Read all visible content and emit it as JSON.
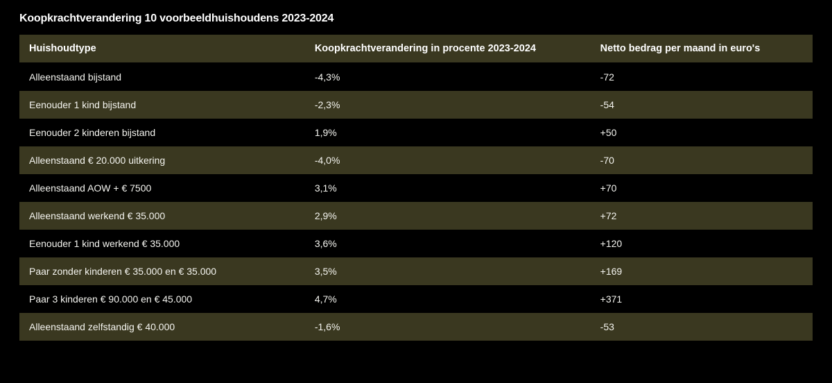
{
  "title": "Koopkrachtverandering 10 voorbeeldhuishoudens 2023-2024",
  "table": {
    "type": "table",
    "columns": [
      "Huishoudtype",
      "Koopkrachtverandering in procente 2023-2024",
      "Netto bedrag per maand in euro's"
    ],
    "rows": [
      [
        "Alleenstaand bijstand",
        "-4,3%",
        "-72"
      ],
      [
        "Eenouder 1 kind bijstand",
        "-2,3%",
        "-54"
      ],
      [
        "Eenouder 2 kinderen bijstand",
        "1,9%",
        "+50"
      ],
      [
        "Alleenstaand € 20.000 uitkering",
        "-4,0%",
        "-70"
      ],
      [
        "Alleenstaand AOW + € 7500",
        "3,1%",
        "+70"
      ],
      [
        "Alleenstaand werkend € 35.000",
        "2,9%",
        "+72"
      ],
      [
        "Eenouder 1 kind werkend € 35.000",
        "3,6%",
        "+120"
      ],
      [
        "Paar zonder kinderen € 35.000 en € 35.000",
        "3,5%",
        "+169"
      ],
      [
        "Paar 3 kinderen € 90.000 en € 45.000",
        "4,7%",
        "+371"
      ],
      [
        "Alleenstaand zelfstandig € 40.000",
        "-1,6%",
        "-53"
      ]
    ],
    "styling": {
      "header_bg": "#3a3820",
      "row_odd_bg": "#000000",
      "row_even_bg": "#3a3820",
      "text_color": "#ffffff",
      "body_text_color": "#f5f5f0",
      "title_fontsize": 16,
      "header_fontsize": 14.5,
      "cell_fontsize": 14,
      "column_widths_pct": [
        36,
        36,
        28
      ]
    }
  }
}
